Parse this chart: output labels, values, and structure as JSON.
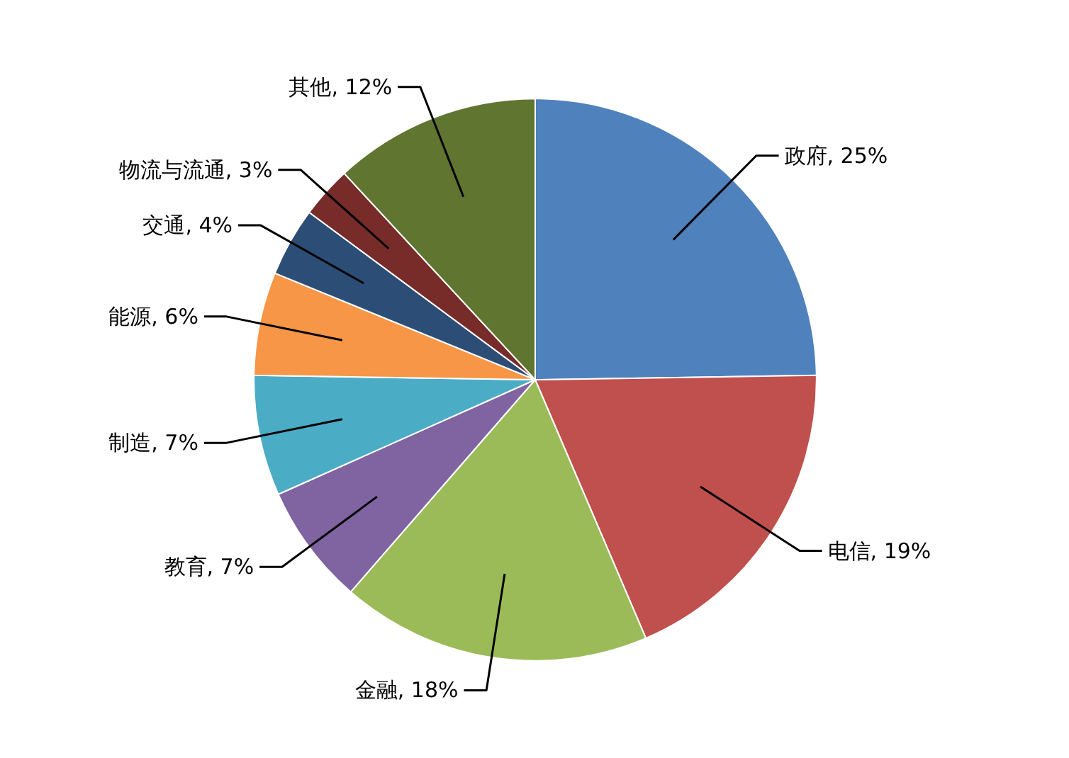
{
  "chart_data": {
    "type": "pie",
    "categories": [
      "政府, 25%",
      "电信, 19%",
      "金融, 18%",
      "教育, 7%",
      "制造, 7%",
      "能源, 6%",
      "交通, 4%",
      "物流与流通, 3%",
      "其他, 12%"
    ],
    "values": [
      25,
      19,
      18,
      7,
      7,
      6,
      4,
      3,
      12
    ],
    "colors": [
      "#4f81bd",
      "#c0504d",
      "#9bbb59",
      "#8064a2",
      "#4bacc6",
      "#f79646",
      "#2c4d75",
      "#772c2a",
      "#5f7530"
    ]
  }
}
